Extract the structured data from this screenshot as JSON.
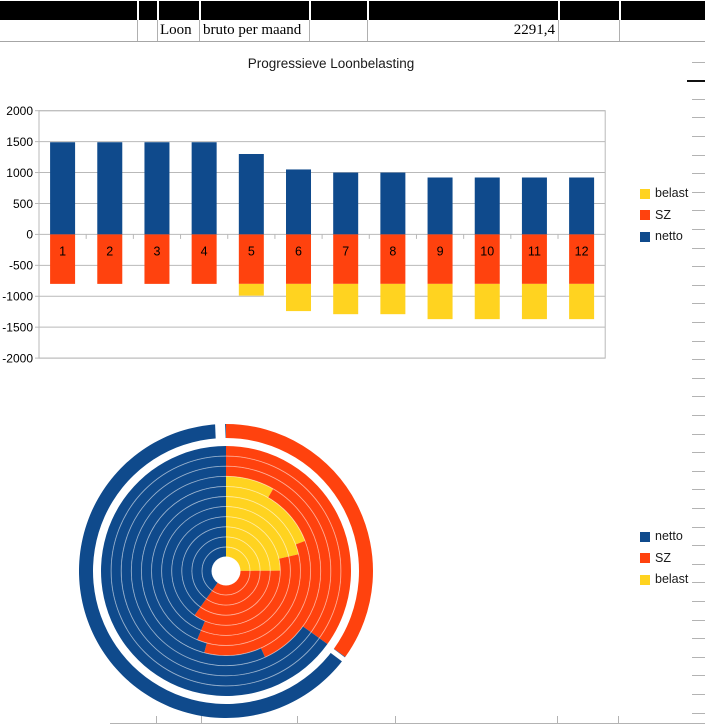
{
  "colors": {
    "netto": "#0f4a8c",
    "sz": "#ff420e",
    "belast": "#ffd320",
    "grid": "#b9b9b9",
    "axis_text": "#000000",
    "cell_border": "#b0b0b0",
    "band": "#000000"
  },
  "spreadsheet": {
    "row": {
      "loon": "Loon",
      "bruto_label": "bruto per maand",
      "bruto_value": "2291,4"
    },
    "column_boundaries_x": [
      137,
      157,
      199,
      309,
      367,
      558,
      619
    ],
    "bottom_tick_x": [
      156,
      201,
      297,
      395,
      557,
      618
    ]
  },
  "chart_data": [
    {
      "type": "bar",
      "title": "Progressieve Loonbelasting",
      "stacked": true,
      "categories": [
        "1",
        "2",
        "3",
        "4",
        "5",
        "6",
        "7",
        "8",
        "9",
        "10",
        "11",
        "12"
      ],
      "series": [
        {
          "name": "netto",
          "color_key": "netto",
          "values": [
            1490,
            1490,
            1490,
            1490,
            1300,
            1050,
            1000,
            1000,
            920,
            920,
            920,
            920
          ]
        },
        {
          "name": "SZ",
          "color_key": "sz",
          "values": [
            -800,
            -800,
            -800,
            -800,
            -800,
            -800,
            -800,
            -800,
            -800,
            -800,
            -800,
            -800
          ]
        },
        {
          "name": "belast",
          "color_key": "belast",
          "values": [
            0,
            0,
            0,
            0,
            -190,
            -440,
            -490,
            -490,
            -570,
            -570,
            -570,
            -570
          ]
        }
      ],
      "ylim": [
        -2000,
        2000
      ],
      "y_tick_labels": [
        "2000",
        "1500",
        "1000",
        "500",
        "0",
        "-500",
        "-1000",
        "-1500",
        "-2000"
      ],
      "grid": "horizontal",
      "legend": {
        "position": "right",
        "items": [
          {
            "label": "belast",
            "color_key": "belast"
          },
          {
            "label": "SZ",
            "color_key": "sz"
          },
          {
            "label": "netto",
            "color_key": "netto"
          }
        ]
      }
    },
    {
      "type": "donut",
      "rings_outer_to_inner": [
        "1",
        "2",
        "3",
        "4",
        "5",
        "6",
        "7",
        "8",
        "9",
        "10",
        "11",
        "12"
      ],
      "slice_order_clockwise_from_top": [
        "belast",
        "SZ",
        "netto"
      ],
      "exploded_ring": "1",
      "series": [
        {
          "name": "netto",
          "color_key": "netto",
          "values": [
            1490,
            1490,
            1490,
            1490,
            1300,
            1050,
            1000,
            1000,
            920,
            920,
            920,
            920
          ]
        },
        {
          "name": "SZ",
          "color_key": "sz",
          "values": [
            800,
            800,
            800,
            800,
            800,
            800,
            800,
            800,
            800,
            800,
            800,
            800
          ]
        },
        {
          "name": "belast",
          "color_key": "belast",
          "values": [
            0,
            0,
            0,
            0,
            190,
            440,
            490,
            490,
            570,
            570,
            570,
            570
          ]
        }
      ],
      "legend": {
        "position": "right",
        "items": [
          {
            "label": "netto",
            "color_key": "netto"
          },
          {
            "label": "SZ",
            "color_key": "sz"
          },
          {
            "label": "belast",
            "color_key": "belast"
          }
        ]
      }
    }
  ]
}
